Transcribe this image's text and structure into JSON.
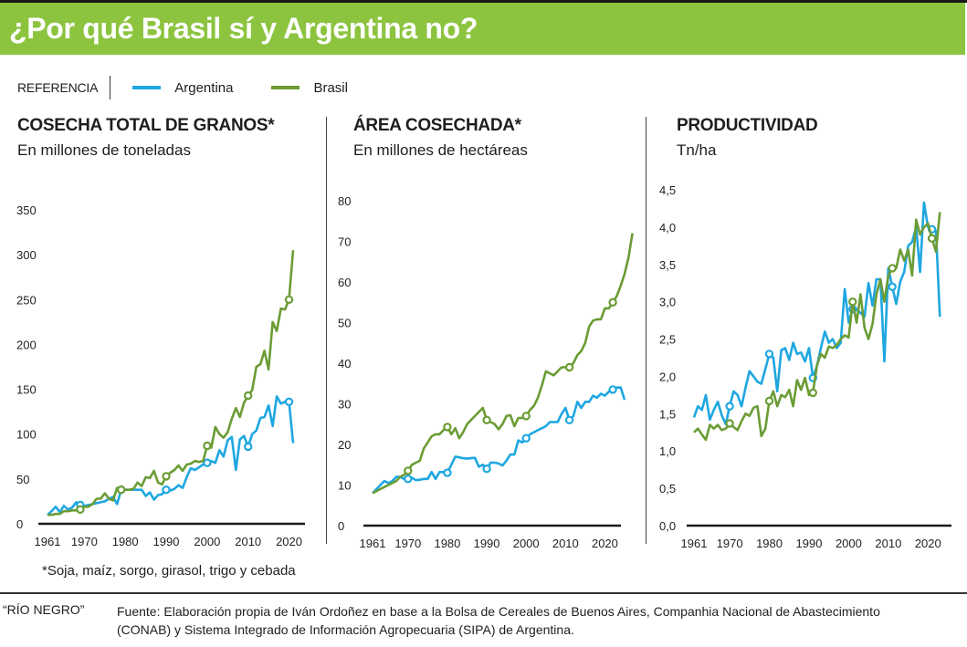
{
  "header": {
    "title": "¿Por qué Brasil sí y Argentina no?"
  },
  "legend": {
    "label": "REFERENCIA",
    "items": [
      {
        "name": "Argentina",
        "color": "#1ea7e1"
      },
      {
        "name": "Brasil",
        "color": "#6b9c35"
      }
    ]
  },
  "colors": {
    "header_bg": "#8cc43f",
    "argentina": "#1ea7e1",
    "brasil": "#6b9c35",
    "axis": "#1a1a1a"
  },
  "panels": [
    {
      "title": "COSECHA TOTAL DE GRANOS*",
      "subtitle": "En millones de toneladas"
    },
    {
      "title": "ÁREA COSECHADA*",
      "subtitle": "En millones de hectáreas"
    },
    {
      "title": "PRODUCTIVIDAD",
      "subtitle": "Tn/ha"
    }
  ],
  "chart_data": [
    {
      "type": "line",
      "title": "COSECHA TOTAL DE GRANOS*",
      "subtitle": "En millones de toneladas",
      "xlabel": "",
      "ylabel": "",
      "x_start": 1961,
      "xlim": [
        1961,
        2023
      ],
      "ylim": [
        0,
        350
      ],
      "yticks": [
        0,
        50,
        100,
        150,
        200,
        250,
        300,
        350
      ],
      "ytick_labels": [
        "0",
        "50",
        "100",
        "150",
        "200",
        "250",
        "300",
        "350"
      ],
      "xticks": [
        1961,
        1970,
        1980,
        1990,
        2000,
        2010,
        2020
      ],
      "xtick_labels": [
        "1961",
        "1970",
        "1980",
        "1990",
        "2000",
        "2010",
        "2020"
      ],
      "grid": false,
      "markers": [
        1969,
        1979,
        1990,
        2000,
        2010,
        2020
      ],
      "series": [
        {
          "name": "Argentina",
          "color": "#1ea7e1",
          "values": [
            10,
            14,
            19,
            13,
            20,
            16,
            18,
            24,
            21,
            20,
            21,
            22,
            23,
            24,
            25,
            28,
            30,
            22,
            38,
            38,
            38,
            38,
            38,
            38,
            31,
            35,
            27,
            32,
            33,
            38,
            37,
            39,
            43,
            40,
            52,
            62,
            60,
            63,
            66,
            68,
            70,
            68,
            82,
            75,
            93,
            97,
            60,
            94,
            98,
            86,
            100,
            104,
            118,
            119,
            132,
            109,
            142,
            134,
            136,
            136,
            90
          ]
        },
        {
          "name": "Brasil",
          "color": "#6b9c35",
          "values": [
            10,
            10,
            11,
            11,
            14,
            14,
            15,
            15,
            16,
            19,
            19,
            22,
            28,
            28,
            34,
            28,
            26,
            40,
            38,
            38,
            38,
            39,
            46,
            42,
            52,
            51,
            59,
            46,
            44,
            53,
            57,
            60,
            65,
            59,
            66,
            67,
            70,
            69,
            70,
            87,
            85,
            108,
            100,
            96,
            102,
            117,
            129,
            119,
            135,
            143,
            149,
            175,
            178,
            193,
            172,
            225,
            215,
            240,
            239,
            250,
            305
          ]
        }
      ]
    },
    {
      "type": "line",
      "title": "ÁREA COSECHADA*",
      "subtitle": "En millones de hectáreas",
      "xlabel": "",
      "ylabel": "",
      "x_start": 1961,
      "xlim": [
        1961,
        2025
      ],
      "ylim": [
        0,
        80
      ],
      "yticks": [
        0,
        10,
        20,
        30,
        40,
        50,
        60,
        70,
        80
      ],
      "ytick_labels": [
        "0",
        "10",
        "20",
        "30",
        "40",
        "50",
        "60",
        "70",
        "80"
      ],
      "xticks": [
        1961,
        1970,
        1980,
        1990,
        2000,
        2010,
        2020
      ],
      "xtick_labels": [
        "1961",
        "1970",
        "1980",
        "1990",
        "2000",
        "2010",
        "2020"
      ],
      "grid": false,
      "markers": [
        1970,
        1980,
        1990,
        2000,
        2011,
        2022
      ],
      "series": [
        {
          "name": "Argentina",
          "color": "#1ea7e1",
          "values": [
            8,
            9,
            10,
            11,
            10.5,
            11,
            12,
            12,
            11.5,
            11.5,
            11.8,
            11.2,
            11.3,
            11.5,
            11.5,
            13.2,
            11.5,
            13.2,
            13.2,
            13,
            15,
            17,
            16.8,
            16.6,
            16.5,
            16.6,
            16.7,
            14.5,
            15,
            14,
            15.5,
            15.5,
            15.3,
            14.8,
            16,
            17.5,
            17.5,
            21,
            20.5,
            21.5,
            22.5,
            23,
            23.5,
            24,
            24.5,
            25.5,
            25.5,
            25.5,
            27.5,
            29,
            26,
            27,
            30.5,
            29,
            30.5,
            30.5,
            32,
            31.5,
            32.5,
            32,
            33,
            33.5,
            34,
            34,
            31
          ]
        },
        {
          "name": "Brasil",
          "color": "#6b9c35",
          "values": [
            8,
            8.5,
            9,
            9.5,
            10,
            10.5,
            11,
            12,
            12.5,
            13.5,
            15,
            15.5,
            16,
            19,
            20.5,
            22,
            22.5,
            22.5,
            23.5,
            24.3,
            22.5,
            24,
            21.5,
            23,
            25,
            26,
            27,
            28,
            29,
            26,
            25.5,
            25,
            23.7,
            25,
            27,
            27.2,
            24.5,
            26.5,
            26.5,
            27,
            28.5,
            29.5,
            31.5,
            34.5,
            38,
            37.5,
            37,
            38,
            39,
            39,
            39,
            40,
            42,
            43,
            45,
            49,
            50.5,
            50.8,
            50.8,
            53.5,
            53.5,
            55,
            56.5,
            59,
            62,
            66,
            72
          ]
        }
      ]
    },
    {
      "type": "line",
      "title": "PRODUCTIVIDAD",
      "subtitle": "Tn/ha",
      "xlabel": "",
      "ylabel": "",
      "x_start": 1961,
      "xlim": [
        1961,
        2025
      ],
      "ylim": [
        0,
        4.5
      ],
      "yticks": [
        0,
        0.5,
        1.0,
        1.5,
        2.0,
        2.5,
        3.0,
        3.5,
        4.0,
        4.5
      ],
      "ytick_labels": [
        "0,0",
        "0,5",
        "1,0",
        "1,5",
        "2,0",
        "2,5",
        "3,0",
        "3,5",
        "4,0",
        "4,5"
      ],
      "xticks": [
        1961,
        1970,
        1980,
        1990,
        2000,
        2010,
        2020
      ],
      "xtick_labels": [
        "1961",
        "1970",
        "1980",
        "1990",
        "2000",
        "2010",
        "2020"
      ],
      "grid": false,
      "markers": [
        1970,
        1980,
        1991,
        2001,
        2011,
        2021
      ],
      "series": [
        {
          "name": "Argentina",
          "color": "#1ea7e1",
          "values": [
            1.45,
            1.6,
            1.55,
            1.75,
            1.42,
            1.55,
            1.66,
            1.48,
            1.36,
            1.6,
            1.8,
            1.75,
            1.6,
            1.85,
            2.07,
            2.0,
            1.93,
            1.9,
            2.1,
            2.3,
            2.25,
            1.8,
            2.35,
            2.38,
            2.22,
            2.45,
            2.3,
            2.32,
            2.2,
            2.38,
            1.98,
            2.14,
            2.38,
            2.6,
            2.45,
            2.5,
            2.38,
            2.45,
            3.17,
            2.72,
            2.9,
            2.9,
            2.85,
            2.8,
            3.25,
            2.95,
            3.3,
            3.3,
            2.2,
            3.45,
            3.2,
            2.97,
            3.27,
            3.4,
            3.75,
            3.8,
            4.0,
            3.4,
            4.33,
            4.0,
            3.97,
            3.95,
            2.8
          ]
        },
        {
          "name": "Brasil",
          "color": "#6b9c35",
          "values": [
            1.25,
            1.3,
            1.22,
            1.15,
            1.35,
            1.3,
            1.35,
            1.28,
            1.3,
            1.37,
            1.32,
            1.28,
            1.4,
            1.5,
            1.47,
            1.58,
            1.6,
            1.2,
            1.3,
            1.67,
            1.8,
            1.6,
            1.75,
            1.72,
            1.82,
            1.6,
            1.95,
            1.82,
            1.98,
            1.75,
            1.78,
            2.15,
            2.3,
            2.25,
            2.4,
            2.38,
            2.42,
            2.5,
            2.55,
            2.52,
            3.0,
            2.72,
            3.1,
            2.65,
            2.5,
            2.7,
            3.1,
            3.3,
            3.0,
            3.35,
            3.45,
            3.45,
            3.7,
            3.55,
            3.7,
            3.35,
            4.1,
            3.9,
            4.0,
            4.05,
            3.85,
            3.67,
            4.2
          ]
        }
      ]
    }
  ],
  "footnote": "*Soja, maíz, sorgo, girasol, trigo y cebada",
  "credit": "“RÍO NEGRO”",
  "source": "Fuente: Elaboración propia de Iván Ordoñez en base a la Bolsa de Cereales de Buenos Aires, Companhia Nacional de Abastecimiento (CONAB) y Sistema Integrado de Información Agropecuaria (SIPA) de Argentina."
}
